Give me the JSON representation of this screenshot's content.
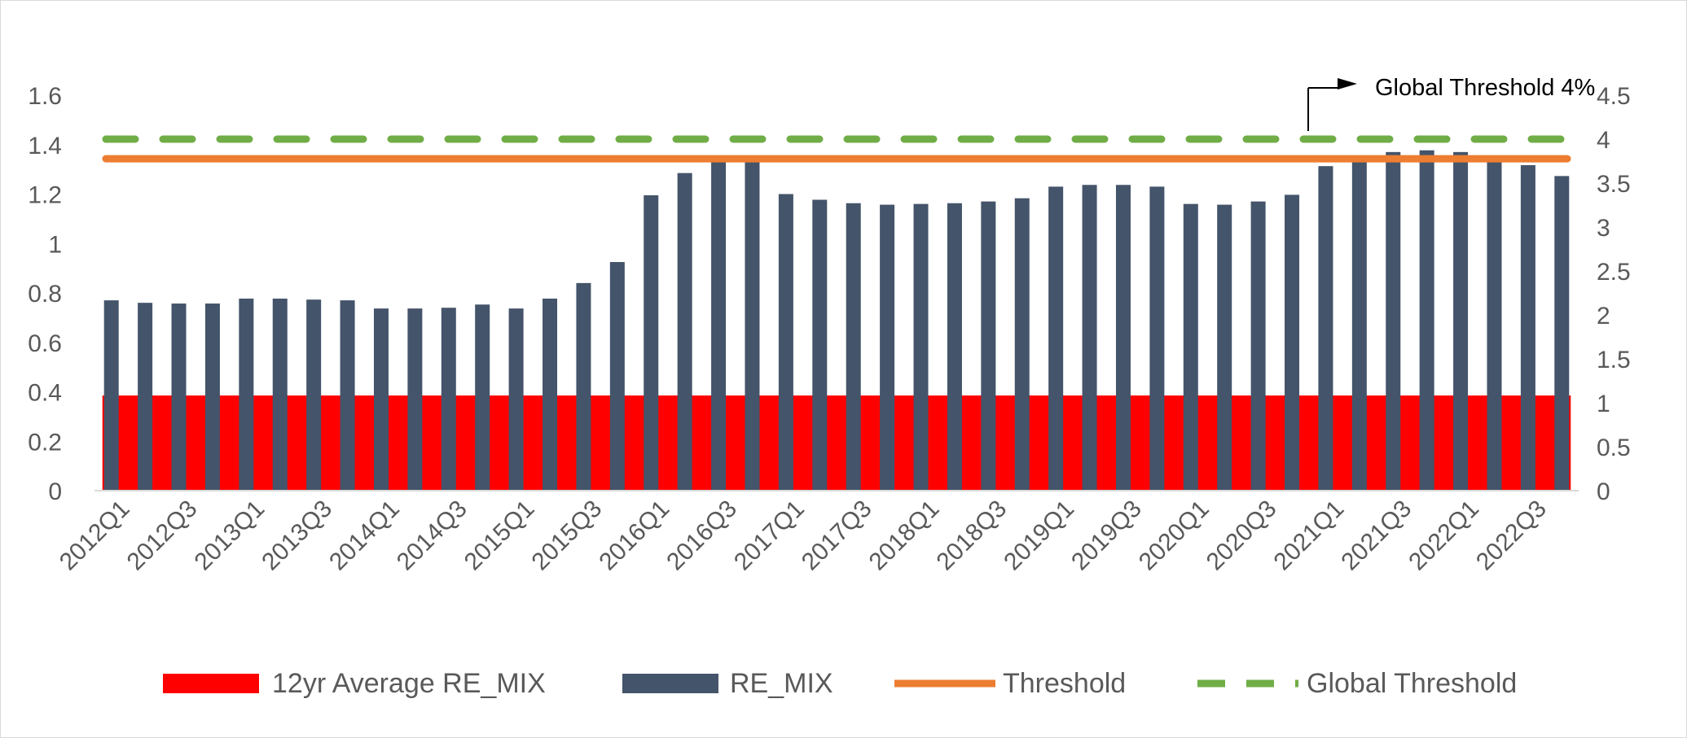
{
  "chart_data": {
    "type": "bar",
    "categories": [
      "2012Q1",
      "2012Q2",
      "2012Q3",
      "2012Q4",
      "2013Q1",
      "2013Q2",
      "2013Q3",
      "2013Q4",
      "2014Q1",
      "2014Q2",
      "2014Q3",
      "2014Q4",
      "2015Q1",
      "2015Q2",
      "2015Q3",
      "2015Q4",
      "2016Q1",
      "2016Q2",
      "2016Q3",
      "2016Q4",
      "2017Q1",
      "2017Q2",
      "2017Q3",
      "2017Q4",
      "2018Q1",
      "2018Q2",
      "2018Q3",
      "2018Q4",
      "2019Q1",
      "2019Q2",
      "2019Q3",
      "2019Q4",
      "2020Q1",
      "2020Q2",
      "2020Q3",
      "2020Q4",
      "2021Q1",
      "2021Q2",
      "2021Q3",
      "2021Q4",
      "2022Q1",
      "2022Q2",
      "2022Q3",
      "2022Q4"
    ],
    "tick_labels": [
      "2012Q1",
      "2012Q3",
      "2013Q1",
      "2013Q3",
      "2014Q1",
      "2014Q3",
      "2015Q1",
      "2015Q3",
      "2016Q1",
      "2016Q3",
      "2017Q1",
      "2017Q3",
      "2018Q1",
      "2018Q3",
      "2019Q1",
      "2019Q3",
      "2020Q1",
      "2020Q3",
      "2021Q1",
      "2021Q3",
      "2022Q1",
      "2022Q3"
    ],
    "series": [
      {
        "name": "12yr Average RE_MIX",
        "type": "area",
        "color": "#ff0000",
        "axis": "left",
        "value": 0.385
      },
      {
        "name": "RE_MIX",
        "type": "bar",
        "color": "#44546a",
        "axis": "left",
        "values": [
          0.77,
          0.76,
          0.757,
          0.757,
          0.777,
          0.777,
          0.773,
          0.77,
          0.737,
          0.737,
          0.74,
          0.753,
          0.737,
          0.777,
          0.84,
          0.925,
          1.195,
          1.285,
          1.34,
          1.34,
          1.2,
          1.177,
          1.163,
          1.157,
          1.16,
          1.163,
          1.17,
          1.183,
          1.23,
          1.237,
          1.237,
          1.23,
          1.16,
          1.157,
          1.17,
          1.197,
          1.313,
          1.343,
          1.37,
          1.377,
          1.37,
          1.343,
          1.317,
          1.273
        ]
      },
      {
        "name": "Threshold",
        "type": "line",
        "color": "#ed7d31",
        "axis": "left",
        "value": 1.343
      },
      {
        "name": "Global Threshold",
        "type": "line",
        "style": "dashed",
        "color": "#70ad47",
        "axis": "right",
        "value": 4
      }
    ],
    "y_left": {
      "range": [
        0,
        1.6
      ],
      "ticks": [
        "0",
        "0.2",
        "0.4",
        "0.6",
        "0.8",
        "1",
        "1.2",
        "1.4",
        "1.6"
      ]
    },
    "y_right": {
      "range": [
        0,
        4.5
      ],
      "ticks": [
        "0",
        "0.5",
        "1",
        "1.5",
        "2",
        "2.5",
        "3",
        "3.5",
        "4",
        "4.5"
      ]
    },
    "annotation": {
      "text": "Global Threshold 4%"
    },
    "legend": {
      "position": "bottom",
      "entries": [
        "12yr Average RE_MIX",
        "RE_MIX",
        "Threshold",
        "Global Threshold"
      ]
    },
    "title": "",
    "xlabel": "",
    "ylabel": "",
    "grid": false
  }
}
